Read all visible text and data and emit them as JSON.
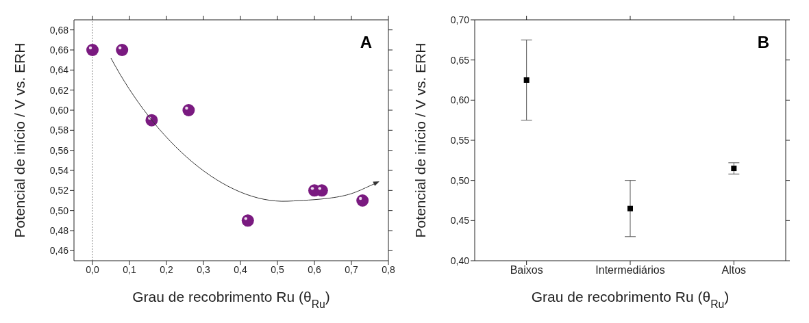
{
  "chart_data": [
    {
      "type": "scatter",
      "xlabel": "Grau de recobrimento Ru (θ$_{Ru}$)",
      "ylabel": "Potencial de início / V vs. ERH",
      "annotations": [
        "A"
      ],
      "xlim": [
        -0.05,
        0.8
      ],
      "xticks": [
        {
          "value": 0,
          "label": "0,0"
        },
        {
          "value": 0.1,
          "label": "0,1"
        },
        {
          "value": 0.2,
          "label": "0,2"
        },
        {
          "value": 0.3,
          "label": "0,3"
        },
        {
          "value": 0.4,
          "label": "0,4"
        },
        {
          "value": 0.5,
          "label": "0,5"
        },
        {
          "value": 0.6,
          "label": "0,6"
        },
        {
          "value": 0.7,
          "label": "0,7"
        },
        {
          "value": 0.8,
          "label": "0,8"
        }
      ],
      "ylim": [
        0.45,
        0.69
      ],
      "yticks": [
        {
          "value": 0.46,
          "label": "0,46"
        },
        {
          "value": 0.48,
          "label": "0,48"
        },
        {
          "value": 0.5,
          "label": "0,50"
        },
        {
          "value": 0.52,
          "label": "0,52"
        },
        {
          "value": 0.54,
          "label": "0,54"
        },
        {
          "value": 0.56,
          "label": "0,56"
        },
        {
          "value": 0.58,
          "label": "0,58"
        },
        {
          "value": 0.6,
          "label": "0,60"
        },
        {
          "value": 0.62,
          "label": "0,62"
        },
        {
          "value": 0.64,
          "label": "0,64"
        },
        {
          "value": 0.66,
          "label": "0,66"
        },
        {
          "value": 0.68,
          "label": "0,68"
        }
      ],
      "ref_lines": [
        {
          "axis": "x",
          "value": 0,
          "color": "#888888",
          "line_style": "dotted"
        }
      ],
      "series": [
        {
          "color": "#7a1a80",
          "marker": "circle",
          "x": [
            0,
            0.08,
            0.16,
            0.26,
            0.42,
            0.6,
            0.62,
            0.73
          ],
          "values": [
            0.66,
            0.66,
            0.59,
            0.6,
            0.49,
            0.52,
            0.52,
            0.51
          ]
        }
      ]
    },
    {
      "type": "scatter",
      "xlabel": "Grau de recobrimento Ru (θ$_{Ru}$)",
      "ylabel": "Potencial de início / V vs. ERH",
      "annotations": [
        "B"
      ],
      "categories": [
        "Baixos",
        "Intermediários",
        "Altos"
      ],
      "values": [
        0.625,
        0.465,
        0.515
      ],
      "errors": [
        [
          0.575,
          0.675
        ],
        [
          0.43,
          0.5
        ],
        [
          0.508,
          0.522
        ]
      ],
      "color": "#000000",
      "marker": "square",
      "ylim": [
        0.4,
        0.7
      ],
      "yticks": [
        {
          "value": 0.4,
          "label": "0,40"
        },
        {
          "value": 0.45,
          "label": "0,45"
        },
        {
          "value": 0.5,
          "label": "0,50"
        },
        {
          "value": 0.55,
          "label": "0,55"
        },
        {
          "value": 0.6,
          "label": "0,60"
        },
        {
          "value": 0.65,
          "label": "0,65"
        },
        {
          "value": 0.7,
          "label": "0,70"
        }
      ]
    }
  ]
}
